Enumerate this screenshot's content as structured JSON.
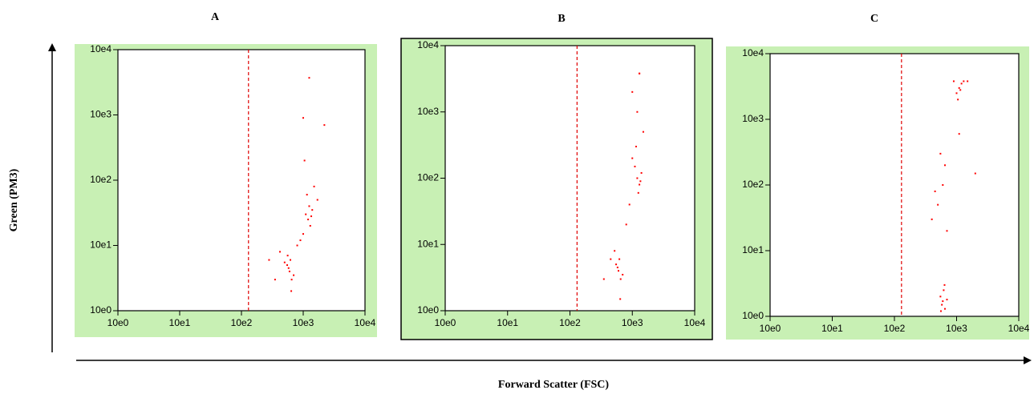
{
  "y_axis_label": "Green (PM3)",
  "x_axis_label": "Forward Scatter (FSC)",
  "chart_data": [
    {
      "type": "scatter",
      "title": "A",
      "x_scale": "log",
      "y_scale": "log",
      "color": "#ff0000",
      "gate_color": "#e00000",
      "gate_x": 130,
      "xlim": [
        1,
        10000
      ],
      "ylim": [
        1,
        10000
      ],
      "xticks": [
        {
          "value": 1,
          "label": "10e0"
        },
        {
          "value": 10,
          "label": "10e1"
        },
        {
          "value": 100,
          "label": "10e2"
        },
        {
          "value": 1000,
          "label": "10e3"
        },
        {
          "value": 10000,
          "label": "10e4"
        }
      ],
      "yticks": [
        {
          "value": 1,
          "label": "10e0"
        },
        {
          "value": 10,
          "label": "10e1"
        },
        {
          "value": 100,
          "label": "10e2"
        },
        {
          "value": 1000,
          "label": "10e3"
        },
        {
          "value": 10000,
          "label": "10e4"
        }
      ],
      "x": [
        600,
        550,
        650,
        620,
        580,
        700,
        500,
        640,
        560,
        1200,
        1100,
        1300,
        1250,
        1000,
        1400,
        1150,
        1350,
        900,
        800,
        1500,
        1700,
        350,
        420,
        280,
        1050,
        1250,
        2200,
        1000
      ],
      "y": [
        4,
        5,
        3,
        6,
        4.5,
        3.5,
        5.5,
        2,
        7,
        25,
        30,
        20,
        40,
        15,
        35,
        60,
        28,
        12,
        10,
        80,
        50,
        3,
        8,
        6,
        200,
        3700,
        700,
        900
      ]
    },
    {
      "type": "scatter",
      "title": "B",
      "x_scale": "log",
      "y_scale": "log",
      "color": "#ff0000",
      "gate_color": "#e00000",
      "gate_x": 130,
      "xlim": [
        1,
        10000
      ],
      "ylim": [
        1,
        10000
      ],
      "xticks": [
        {
          "value": 1,
          "label": "10e0"
        },
        {
          "value": 10,
          "label": "10e1"
        },
        {
          "value": 100,
          "label": "10e2"
        },
        {
          "value": 1000,
          "label": "10e3"
        },
        {
          "value": 10000,
          "label": "10e4"
        }
      ],
      "yticks": [
        {
          "value": 1,
          "label": "10e0"
        },
        {
          "value": 10,
          "label": "10e1"
        },
        {
          "value": 100,
          "label": "10e2"
        },
        {
          "value": 1000,
          "label": "10e3"
        },
        {
          "value": 10000,
          "label": "10e4"
        }
      ],
      "x": [
        600,
        550,
        650,
        620,
        580,
        700,
        520,
        640,
        1200,
        1100,
        1300,
        1250,
        1000,
        1400,
        1150,
        1350,
        1200,
        1300,
        900,
        800,
        450,
        350,
        1500,
        1000,
        1300
      ],
      "y": [
        4,
        5,
        3,
        6,
        4.5,
        3.5,
        8,
        1.5,
        100,
        150,
        80,
        60,
        200,
        120,
        300,
        90,
        1000,
        3800,
        40,
        20,
        6,
        3,
        500,
        2000,
        3800
      ]
    },
    {
      "type": "scatter",
      "title": "C",
      "x_scale": "log",
      "y_scale": "log",
      "color": "#ff0000",
      "gate_color": "#e00000",
      "gate_x": 130,
      "xlim": [
        1,
        10000
      ],
      "ylim": [
        1,
        10000
      ],
      "xticks": [
        {
          "value": 1,
          "label": "10e0"
        },
        {
          "value": 10,
          "label": "10e1"
        },
        {
          "value": 100,
          "label": "10e2"
        },
        {
          "value": 1000,
          "label": "10e3"
        },
        {
          "value": 10000,
          "label": "10e4"
        }
      ],
      "yticks": [
        {
          "value": 1,
          "label": "10e0"
        },
        {
          "value": 10,
          "label": "10e1"
        },
        {
          "value": 100,
          "label": "10e2"
        },
        {
          "value": 1000,
          "label": "10e3"
        },
        {
          "value": 10000,
          "label": "10e4"
        }
      ],
      "x": [
        600,
        550,
        650,
        620,
        580,
        700,
        640,
        560,
        1100,
        1000,
        1200,
        1300,
        1050,
        1150,
        900,
        1500,
        600,
        500,
        650,
        400,
        700,
        550,
        450,
        1100,
        2000
      ],
      "y": [
        1.7,
        2,
        1.3,
        2.5,
        1.5,
        1.8,
        3,
        1.2,
        3000,
        2500,
        3500,
        3800,
        2000,
        2800,
        3800,
        3800,
        100,
        50,
        200,
        30,
        20,
        300,
        80,
        600,
        150
      ]
    }
  ]
}
